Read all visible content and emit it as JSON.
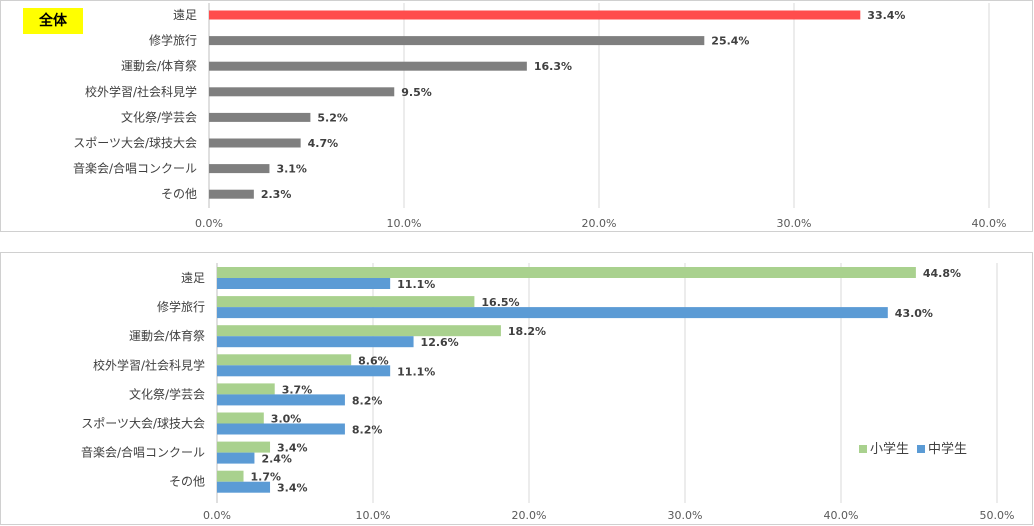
{
  "chart_data": [
    {
      "type": "bar",
      "orientation": "horizontal",
      "title": "全体",
      "categories": [
        "遠足",
        "修学旅行",
        "運動会/体育祭",
        "校外学習/社会科見学",
        "文化祭/学芸会",
        "スポーツ大会/球技大会",
        "音楽会/合唱コンクール",
        "その他"
      ],
      "values": [
        33.4,
        25.4,
        16.3,
        9.5,
        5.2,
        4.7,
        3.1,
        2.3
      ],
      "value_labels": [
        "33.4%",
        "25.4%",
        "16.3%",
        "9.5%",
        "5.2%",
        "4.7%",
        "3.1%",
        "2.3%"
      ],
      "highlight_color": "#ff4d4d",
      "bar_color": "#7f7f7f",
      "xlim": [
        0,
        40
      ],
      "xticks": [
        "0.0%",
        "10.0%",
        "20.0%",
        "30.0%",
        "40.0%"
      ],
      "grid": true
    },
    {
      "type": "bar",
      "orientation": "horizontal",
      "title": "",
      "categories": [
        "遠足",
        "修学旅行",
        "運動会/体育祭",
        "校外学習/社会科見学",
        "文化祭/学芸会",
        "スポーツ大会/球技大会",
        "音楽会/合唱コンクール",
        "その他"
      ],
      "series": [
        {
          "name": "小学生",
          "color": "#a9d18e",
          "values": [
            44.8,
            16.5,
            18.2,
            8.6,
            3.7,
            3.0,
            3.4,
            1.7
          ],
          "value_labels": [
            "44.8%",
            "16.5%",
            "18.2%",
            "8.6%",
            "3.7%",
            "3.0%",
            "3.4%",
            "1.7%"
          ]
        },
        {
          "name": "中学生",
          "color": "#5b9bd5",
          "values": [
            11.1,
            43.0,
            12.6,
            11.1,
            8.2,
            8.2,
            2.4,
            3.4
          ],
          "value_labels": [
            "11.1%",
            "43.0%",
            "12.6%",
            "11.1%",
            "8.2%",
            "8.2%",
            "2.4%",
            "3.4%"
          ]
        }
      ],
      "xlim": [
        0,
        50
      ],
      "xticks": [
        "0.0%",
        "10.0%",
        "20.0%",
        "30.0%",
        "40.0%",
        "50.0%"
      ],
      "legend": "right",
      "grid": true
    }
  ]
}
